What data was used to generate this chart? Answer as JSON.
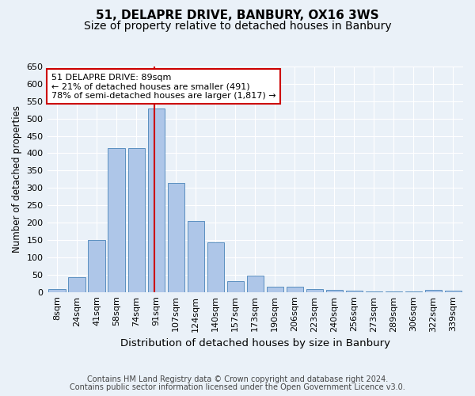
{
  "title1": "51, DELAPRE DRIVE, BANBURY, OX16 3WS",
  "title2": "Size of property relative to detached houses in Banbury",
  "xlabel": "Distribution of detached houses by size in Banbury",
  "ylabel": "Number of detached properties",
  "categories": [
    "8sqm",
    "24sqm",
    "41sqm",
    "58sqm",
    "74sqm",
    "91sqm",
    "107sqm",
    "124sqm",
    "140sqm",
    "157sqm",
    "173sqm",
    "190sqm",
    "206sqm",
    "223sqm",
    "240sqm",
    "256sqm",
    "273sqm",
    "289sqm",
    "306sqm",
    "322sqm",
    "339sqm"
  ],
  "values": [
    8,
    42,
    150,
    415,
    415,
    530,
    315,
    205,
    142,
    32,
    48,
    15,
    15,
    8,
    5,
    3,
    2,
    2,
    2,
    5,
    3
  ],
  "bar_color": "#aec6e8",
  "bar_edge_color": "#5a8fc0",
  "annotation_line1": "51 DELAPRE DRIVE: 89sqm",
  "annotation_line2": "← 21% of detached houses are smaller (491)",
  "annotation_line3": "78% of semi-detached houses are larger (1,817) →",
  "annotation_box_facecolor": "#ffffff",
  "annotation_box_edgecolor": "#cc0000",
  "line_color": "#cc0000",
  "line_x_index": 4.93,
  "footer1": "Contains HM Land Registry data © Crown copyright and database right 2024.",
  "footer2": "Contains public sector information licensed under the Open Government Licence v3.0.",
  "bg_color": "#eaf1f8",
  "ylim": [
    0,
    650
  ],
  "yticks": [
    0,
    50,
    100,
    150,
    200,
    250,
    300,
    350,
    400,
    450,
    500,
    550,
    600,
    650
  ],
  "title1_fontsize": 11,
  "title2_fontsize": 10,
  "xlabel_fontsize": 9.5,
  "ylabel_fontsize": 8.5,
  "tick_fontsize": 8,
  "annot_fontsize": 8,
  "footer_fontsize": 7
}
